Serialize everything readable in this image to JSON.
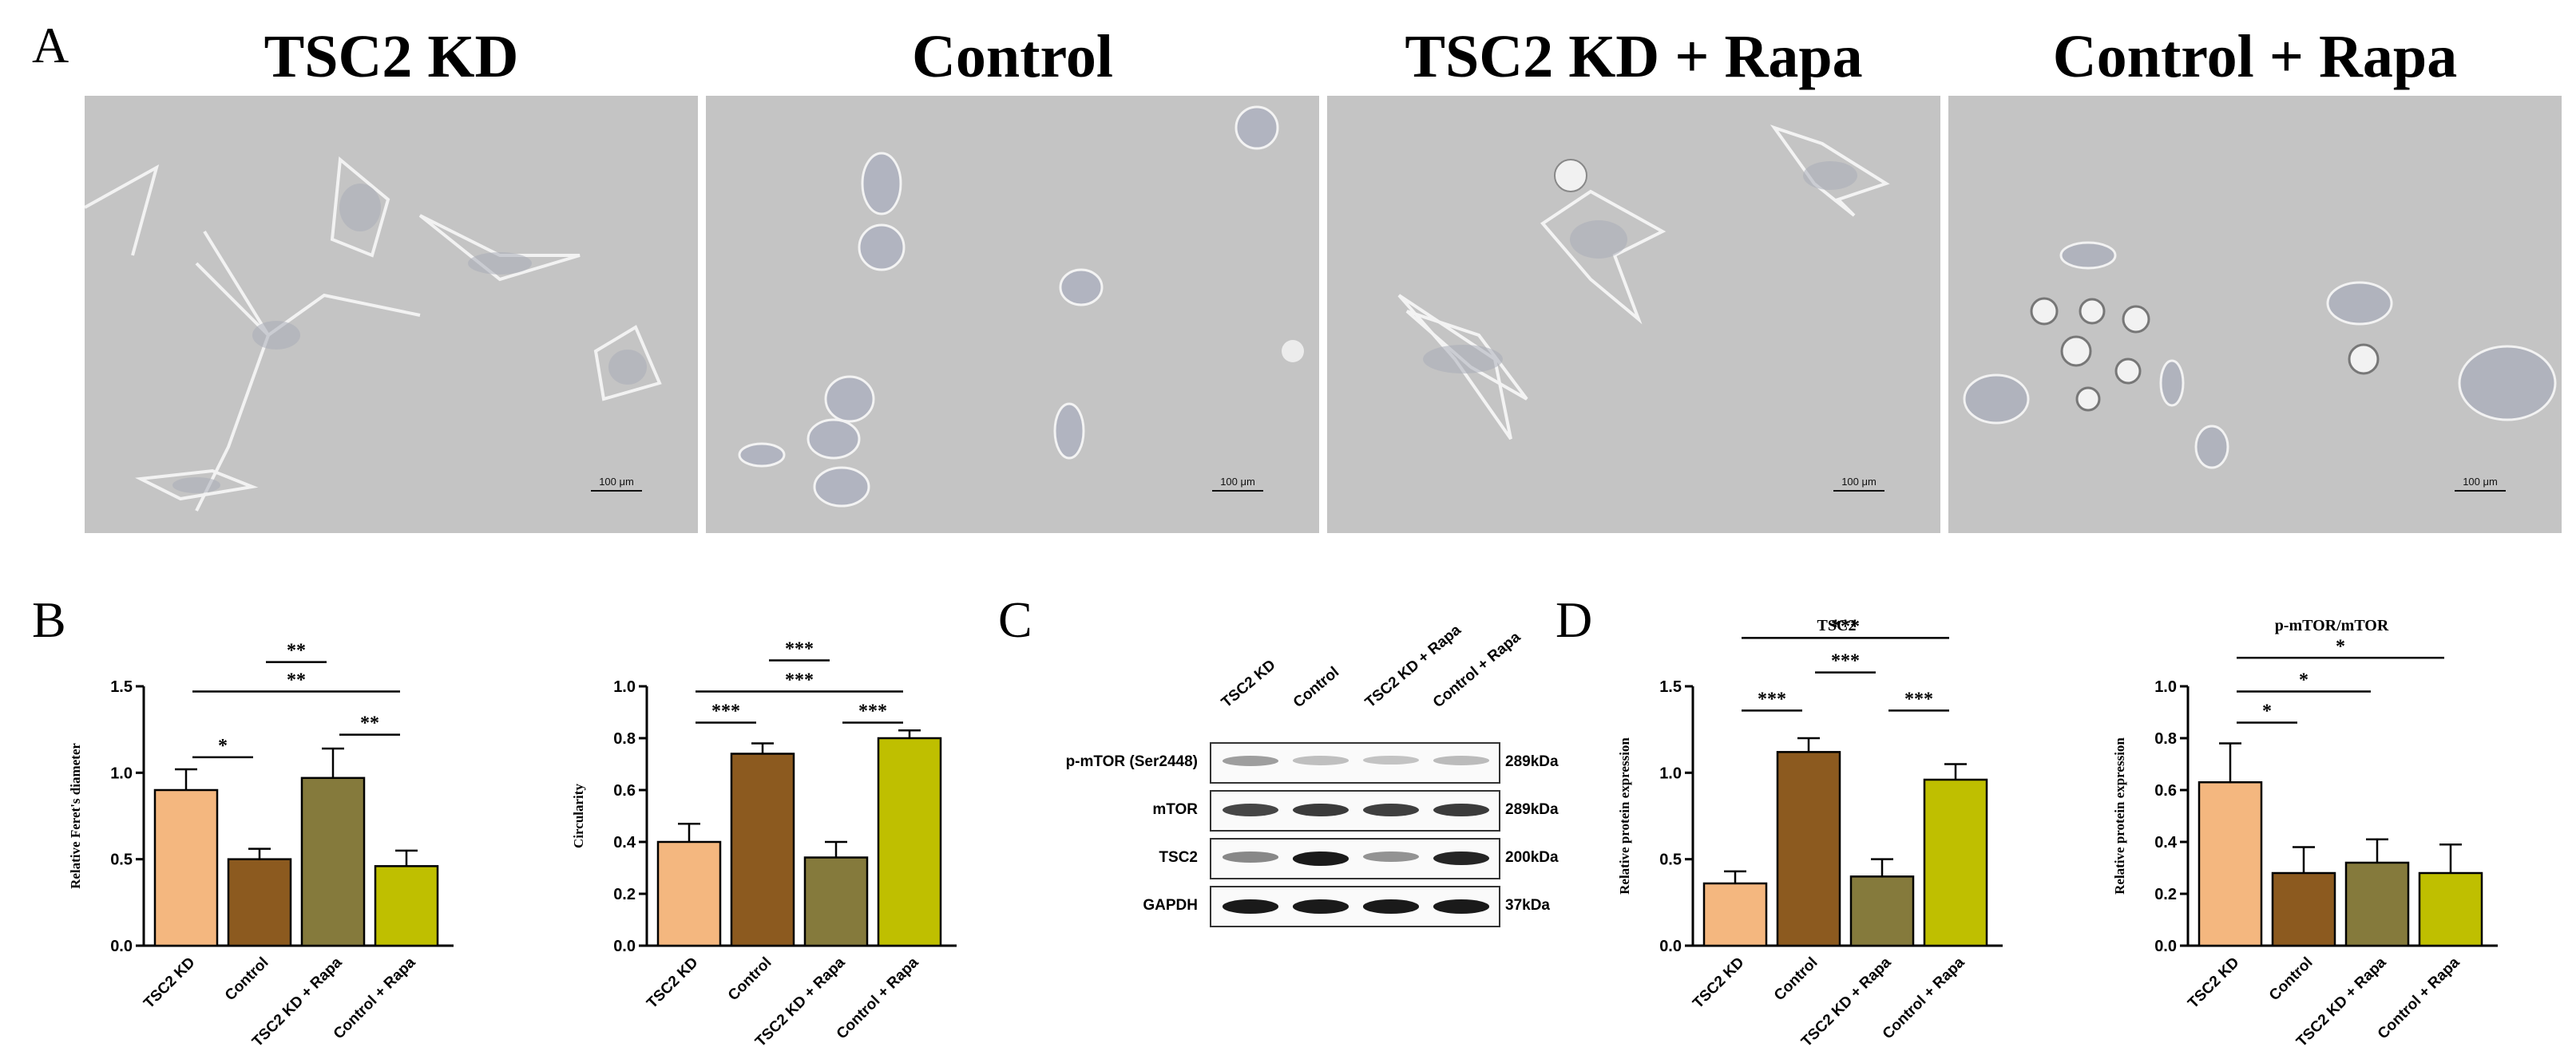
{
  "panel_letters": {
    "a": "A",
    "b": "B",
    "c": "C",
    "d": "D"
  },
  "micrographs": [
    {
      "title": "TSC2 KD",
      "scale_bar": "100 μm"
    },
    {
      "title": "Control",
      "scale_bar": "100 μm"
    },
    {
      "title": "TSC2 KD + Rapa",
      "scale_bar": "100 μm"
    },
    {
      "title": "Control + Rapa",
      "scale_bar": "100 μm"
    }
  ],
  "colors": {
    "TSC2 KD": "#f4b77f",
    "Control": "#8c5a1f",
    "TSC2 KD + Rapa": "#857a3c",
    "Control + Rapa": "#bfbf00"
  },
  "chart_data": [
    {
      "id": "feret",
      "type": "bar",
      "title": "",
      "ylabel": "Relative Feret's diameter",
      "categories": [
        "TSC2 KD",
        "Control",
        "TSC2 KD + Rapa",
        "Control + Rapa"
      ],
      "values": [
        0.9,
        0.5,
        0.97,
        0.46
      ],
      "errors": [
        0.12,
        0.06,
        0.17,
        0.09
      ],
      "ylim": [
        0,
        1.5
      ],
      "yticks": [
        "0.0",
        "0.5",
        "1.0",
        "1.5"
      ],
      "significance": [
        {
          "from": 0,
          "to": 1,
          "label": "*",
          "level": 1.09
        },
        {
          "from": 2,
          "to": 3,
          "label": "**",
          "level": 1.22
        },
        {
          "from": 0,
          "to": 3,
          "label": "**",
          "level": 1.47
        },
        {
          "from": 1,
          "to": 2,
          "label": "**",
          "level": 1.64
        }
      ]
    },
    {
      "id": "circularity",
      "type": "bar",
      "title": "",
      "ylabel": "Circularity",
      "categories": [
        "TSC2 KD",
        "Control",
        "TSC2 KD + Rapa",
        "Control + Rapa"
      ],
      "values": [
        0.4,
        0.74,
        0.34,
        0.8
      ],
      "errors": [
        0.07,
        0.04,
        0.06,
        0.03
      ],
      "ylim": [
        0,
        1.0
      ],
      "yticks": [
        "0.0",
        "0.2",
        "0.4",
        "0.6",
        "0.8",
        "1.0"
      ],
      "significance": [
        {
          "from": 0,
          "to": 1,
          "label": "***",
          "level": 0.86
        },
        {
          "from": 2,
          "to": 3,
          "label": "***",
          "level": 0.86
        },
        {
          "from": 0,
          "to": 3,
          "label": "***",
          "level": 0.98
        },
        {
          "from": 1,
          "to": 2,
          "label": "***",
          "level": 1.1
        }
      ]
    },
    {
      "id": "tsc2",
      "type": "bar",
      "title": "TSC2",
      "ylabel": "Relative protein expression",
      "categories": [
        "TSC2 KD",
        "Control",
        "TSC2 KD + Rapa",
        "Control + Rapa"
      ],
      "values": [
        0.36,
        1.12,
        0.4,
        0.96
      ],
      "errors": [
        0.07,
        0.08,
        0.1,
        0.09
      ],
      "ylim": [
        0,
        1.5
      ],
      "yticks": [
        "0.0",
        "0.5",
        "1.0",
        "1.5"
      ],
      "significance": [
        {
          "from": 0,
          "to": 1,
          "label": "***",
          "level": 1.36
        },
        {
          "from": 2,
          "to": 3,
          "label": "***",
          "level": 1.36
        },
        {
          "from": 1,
          "to": 2,
          "label": "***",
          "level": 1.58
        },
        {
          "from": 0,
          "to": 3,
          "label": "***",
          "level": 1.78
        }
      ]
    },
    {
      "id": "pmtor",
      "type": "bar",
      "title": "p-mTOR/mTOR",
      "ylabel": "Relative protein expression",
      "categories": [
        "TSC2 KD",
        "Control",
        "TSC2 KD + Rapa",
        "Control + Rapa"
      ],
      "values": [
        0.63,
        0.28,
        0.32,
        0.28
      ],
      "errors": [
        0.15,
        0.1,
        0.09,
        0.11
      ],
      "ylim": [
        0,
        1.0
      ],
      "yticks": [
        "0.0",
        "0.2",
        "0.4",
        "0.6",
        "0.8",
        "1.0"
      ],
      "significance": [
        {
          "from": 0,
          "to": 1,
          "label": "*",
          "level": 0.86
        },
        {
          "from": 0,
          "to": 2,
          "label": "*",
          "level": 0.98
        },
        {
          "from": 0,
          "to": 3,
          "label": "*",
          "level": 1.11
        }
      ]
    }
  ],
  "western_blot": {
    "lanes": [
      "TSC2 KD",
      "Control",
      "TSC2 KD + Rapa",
      "Control + Rapa"
    ],
    "rows": [
      {
        "label": "p-mTOR (Ser2448)",
        "kda": "289kDa",
        "intensity": [
          0.35,
          0.2,
          0.18,
          0.22
        ]
      },
      {
        "label": "mTOR",
        "kda": "289kDa",
        "intensity": [
          0.75,
          0.8,
          0.78,
          0.8
        ]
      },
      {
        "label": "TSC2",
        "kda": "200kDa",
        "intensity": [
          0.45,
          0.95,
          0.4,
          0.9
        ]
      },
      {
        "label": "GAPDH",
        "kda": "37kDa",
        "intensity": [
          0.95,
          0.95,
          0.95,
          0.95
        ]
      }
    ]
  }
}
